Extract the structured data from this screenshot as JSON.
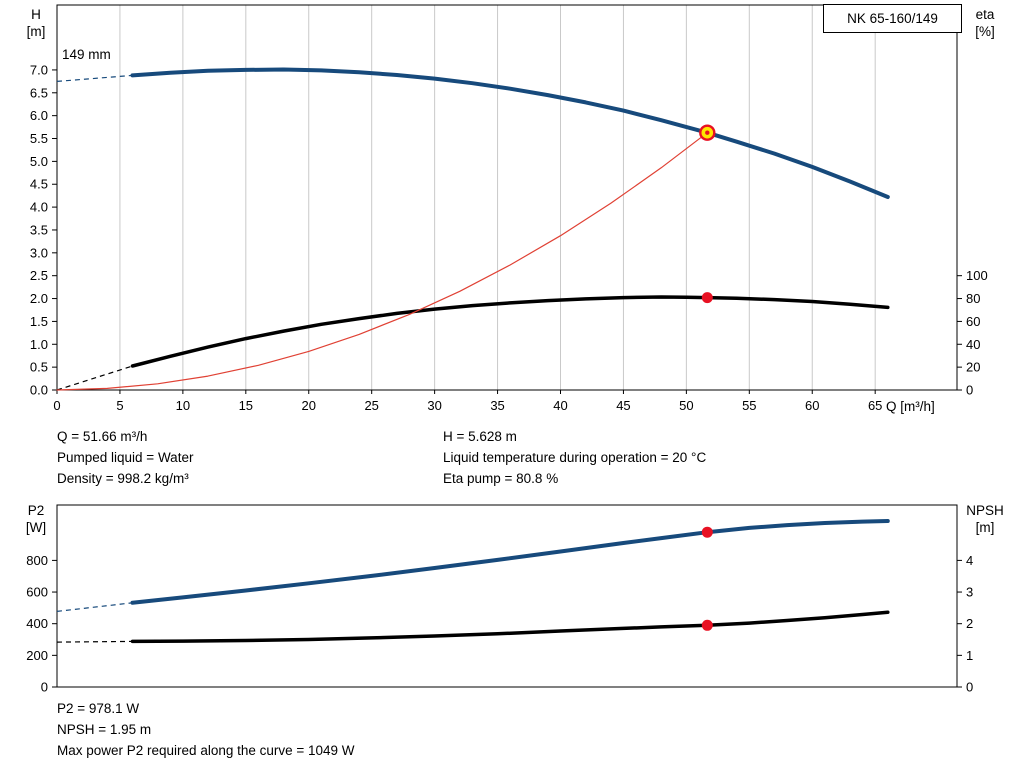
{
  "title_box": {
    "model": "NK 65-160/149"
  },
  "labels": {
    "impeller": "149 mm",
    "h_axis": "H",
    "h_unit": "[m]",
    "eta_axis": "eta",
    "eta_unit": "[%]",
    "q_axis": "Q [m³/h]",
    "p2_axis": "P2",
    "p2_unit": "[W]",
    "npsh_axis": "NPSH",
    "npsh_unit": "[m]"
  },
  "info": {
    "q": "Q = 51.66 m³/h",
    "pumped_liquid": "Pumped liquid = Water",
    "density": "Density = 998.2 kg/m³",
    "h": "H = 5.628 m",
    "liquid_temp": "Liquid temperature during operation = 20 °C",
    "eta_pump": "Eta pump = 80.8 %"
  },
  "results": {
    "p2": "P2 = 978.1 W",
    "npsh": "NPSH = 1.95 m",
    "max_power": "Max power P2 required along the curve = 1049 W"
  },
  "colors": {
    "curve_blue": "#174a7c",
    "curve_black": "#000000",
    "curve_red": "#e04134",
    "marker_red": "#e81123",
    "marker_yellow": "#ffe600",
    "grid": "#c9c9c9",
    "frame": "#000000"
  },
  "chart_data": [
    {
      "type": "line",
      "name": "qh-efficiency-chart",
      "title": "NK 65-160/149 QH and efficiency curves, impeller 149 mm",
      "x": {
        "label": "Q [m³/h]",
        "range": [
          0,
          71.5
        ],
        "ticks": [
          0,
          5,
          10,
          15,
          20,
          25,
          30,
          35,
          40,
          45,
          50,
          55,
          60,
          65
        ],
        "grid": true,
        "show_labels": true
      },
      "y_left": {
        "label": "H [m]",
        "range": [
          0,
          8.42
        ],
        "decimals": 1,
        "ticks": [
          0,
          0.5,
          1,
          1.5,
          2,
          2.5,
          3,
          3.5,
          4,
          4.5,
          5,
          5.5,
          6,
          6.5,
          7
        ]
      },
      "y_right": {
        "label": "eta [%]",
        "range": [
          0,
          336.8
        ],
        "decimals": 0,
        "ticks": [
          0,
          20,
          40,
          60,
          80,
          100
        ]
      },
      "series": [
        {
          "name": "pump-qh-curve",
          "axis": "left",
          "color": "#174a7c",
          "width": 4,
          "lead_dash": [
            [
              0,
              6.75
            ],
            [
              6,
              6.88
            ]
          ],
          "points": [
            [
              6,
              6.88
            ],
            [
              9,
              6.94
            ],
            [
              12,
              6.98
            ],
            [
              15,
              7.0
            ],
            [
              18,
              7.01
            ],
            [
              21,
              6.99
            ],
            [
              24,
              6.95
            ],
            [
              27,
              6.89
            ],
            [
              30,
              6.81
            ],
            [
              33,
              6.71
            ],
            [
              36,
              6.59
            ],
            [
              39,
              6.45
            ],
            [
              42,
              6.29
            ],
            [
              45,
              6.11
            ],
            [
              48,
              5.9
            ],
            [
              51.66,
              5.628
            ],
            [
              54,
              5.43
            ],
            [
              57,
              5.17
            ],
            [
              60,
              4.88
            ],
            [
              63,
              4.56
            ],
            [
              66,
              4.22
            ]
          ]
        },
        {
          "name": "efficiency-curve",
          "axis": "right",
          "color": "#000000",
          "width": 3.5,
          "lead_dash": [
            [
              0,
              0
            ],
            [
              6,
              21
            ]
          ],
          "points": [
            [
              6,
              21
            ],
            [
              9,
              29.5
            ],
            [
              12,
              37.5
            ],
            [
              15,
              45
            ],
            [
              18,
              51.5
            ],
            [
              21,
              57.5
            ],
            [
              24,
              62.5
            ],
            [
              27,
              67
            ],
            [
              30,
              70.8
            ],
            [
              33,
              73.8
            ],
            [
              36,
              76.2
            ],
            [
              39,
              78.2
            ],
            [
              42,
              79.7
            ],
            [
              45,
              80.8
            ],
            [
              48,
              81.4
            ],
            [
              50,
              81.2
            ],
            [
              51.66,
              80.8
            ],
            [
              54,
              80.2
            ],
            [
              57,
              79.1
            ],
            [
              60,
              77.4
            ],
            [
              63,
              75.1
            ],
            [
              66,
              72.3
            ]
          ]
        },
        {
          "name": "duty-parabola",
          "axis": "left",
          "color": "#e04134",
          "width": 1.2,
          "points": [
            [
              0,
              0
            ],
            [
              4,
              0.034
            ],
            [
              8,
              0.135
            ],
            [
              12,
              0.304
            ],
            [
              16,
              0.54
            ],
            [
              20,
              0.844
            ],
            [
              24,
              1.215
            ],
            [
              28,
              1.653
            ],
            [
              32,
              2.159
            ],
            [
              36,
              2.733
            ],
            [
              40,
              3.374
            ],
            [
              44,
              4.083
            ],
            [
              48,
              4.859
            ],
            [
              51.66,
              5.628
            ]
          ]
        }
      ],
      "markers": [
        {
          "name": "duty-point",
          "axis": "left",
          "x": 51.66,
          "y": 5.628,
          "style": "ring"
        },
        {
          "name": "eta-operating-point",
          "axis": "right",
          "x": 51.66,
          "y": 80.8,
          "style": "dot"
        }
      ]
    },
    {
      "type": "line",
      "name": "power-npsh-chart",
      "title": "P2 and NPSH curves",
      "x": {
        "label": "Q [m³/h]",
        "range": [
          0,
          71.5
        ],
        "ticks": [],
        "grid": false,
        "show_labels": false
      },
      "y_left": {
        "label": "P2 [W]",
        "range": [
          0,
          1150
        ],
        "decimals": 0,
        "ticks": [
          0,
          200,
          400,
          600,
          800
        ]
      },
      "y_right": {
        "label": "NPSH [m]",
        "range": [
          0,
          5.75
        ],
        "decimals": 0,
        "ticks": [
          0,
          1,
          2,
          3,
          4
        ]
      },
      "series": [
        {
          "name": "p2-curve",
          "axis": "left",
          "color": "#174a7c",
          "width": 4,
          "lead_dash": [
            [
              0,
              478
            ],
            [
              6,
              532
            ]
          ],
          "points": [
            [
              6,
              532
            ],
            [
              10,
              566
            ],
            [
              15,
              610
            ],
            [
              20,
              655
            ],
            [
              25,
              702
            ],
            [
              30,
              752
            ],
            [
              35,
              803
            ],
            [
              40,
              856
            ],
            [
              45,
              910
            ],
            [
              48,
              941
            ],
            [
              51.66,
              978
            ],
            [
              55,
              1005
            ],
            [
              58,
              1023
            ],
            [
              61,
              1036
            ],
            [
              64,
              1045
            ],
            [
              66,
              1049
            ]
          ]
        },
        {
          "name": "npsh-curve",
          "axis": "right",
          "color": "#000000",
          "width": 3.5,
          "lead_dash": [
            [
              0,
              1.42
            ],
            [
              6,
              1.44
            ]
          ],
          "points": [
            [
              6,
              1.44
            ],
            [
              10,
              1.45
            ],
            [
              15,
              1.47
            ],
            [
              20,
              1.5
            ],
            [
              25,
              1.55
            ],
            [
              30,
              1.61
            ],
            [
              35,
              1.68
            ],
            [
              40,
              1.77
            ],
            [
              45,
              1.85
            ],
            [
              48,
              1.9
            ],
            [
              51.66,
              1.95
            ],
            [
              55,
              2.02
            ],
            [
              58,
              2.1
            ],
            [
              61,
              2.19
            ],
            [
              64,
              2.29
            ],
            [
              66,
              2.36
            ]
          ]
        }
      ],
      "markers": [
        {
          "name": "p2-operating-point",
          "axis": "left",
          "x": 51.66,
          "y": 978.1,
          "style": "dot"
        },
        {
          "name": "npsh-operating-point",
          "axis": "right",
          "x": 51.66,
          "y": 1.95,
          "style": "dot"
        }
      ]
    }
  ]
}
